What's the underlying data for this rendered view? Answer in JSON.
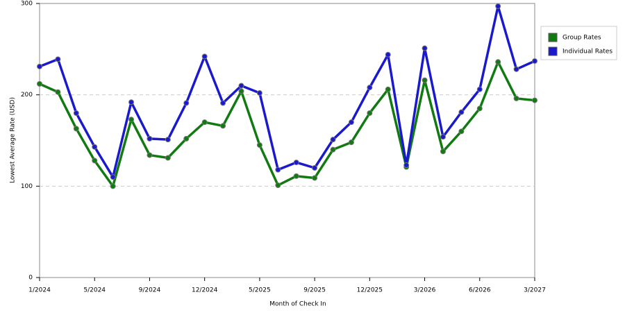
{
  "chart_data": {
    "type": "line",
    "x_label": "Month of Check In",
    "y_label": "Lowest Average Rate (USD)",
    "categories": [
      "1/2024",
      null,
      null,
      "5/2024",
      null,
      null,
      "9/2024",
      null,
      null,
      "12/2024",
      null,
      null,
      "5/2025",
      null,
      null,
      "9/2025",
      null,
      null,
      "12/2025",
      null,
      null,
      "3/2026",
      null,
      null,
      "6/2026",
      null,
      null,
      "3/2027"
    ],
    "series": [
      {
        "name": "Group Rates",
        "color": "#117a11",
        "values": [
          212,
          203,
          163,
          128,
          100,
          173,
          134,
          131,
          152,
          170,
          166,
          204,
          145,
          101,
          111,
          109,
          140,
          148,
          180,
          206,
          121,
          216,
          138,
          160,
          185,
          236,
          196,
          194
        ]
      },
      {
        "name": "Individual Rates",
        "color": "#1a1acc",
        "values": [
          231,
          239,
          180,
          143,
          110,
          192,
          152,
          151,
          191,
          242,
          191,
          210,
          202,
          118,
          126,
          120,
          151,
          170,
          208,
          244,
          123,
          251,
          154,
          181,
          206,
          297,
          228,
          237
        ]
      }
    ],
    "ylim": [
      0,
      300
    ],
    "yticks": [
      0,
      100,
      200,
      300
    ],
    "grid": true,
    "legend": "right"
  }
}
